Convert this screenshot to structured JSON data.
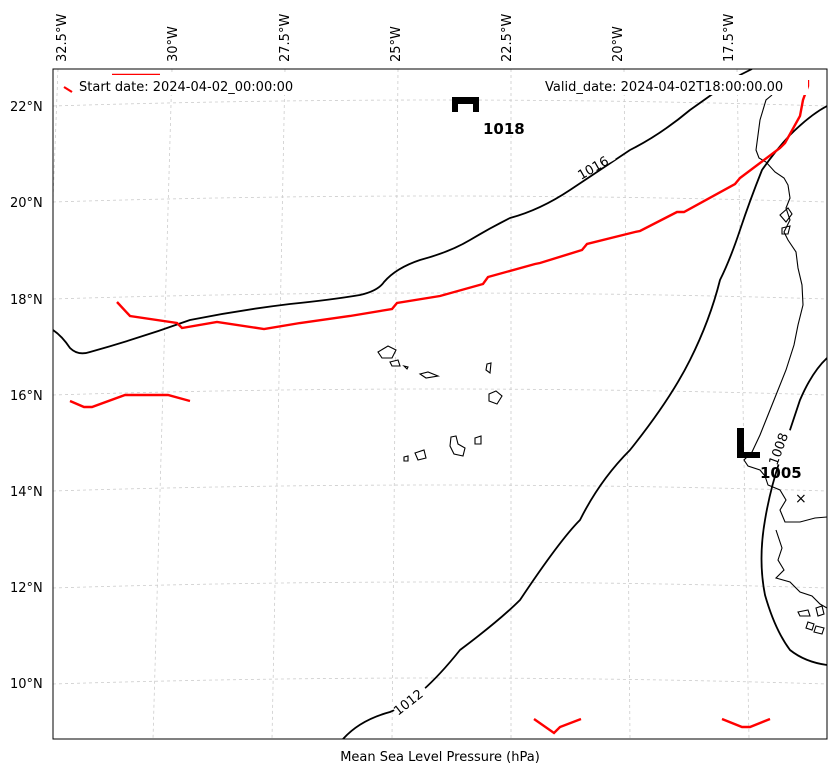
{
  "map": {
    "xlabel": "Mean Sea Level Pressure (hPa)",
    "start_date": "Start date: 2024-04-02_00:00:00",
    "valid_date": "Valid_date: 2024-04-02T18:00:00.00",
    "longitude_labels": [
      "32.5°W",
      "30°W",
      "27.5°W",
      "25°W",
      "22.5°W",
      "20°W",
      "17.5°W"
    ],
    "latitude_labels": [
      "22°N",
      "20°N",
      "18°N",
      "16°N",
      "14°N",
      "12°N",
      "10°N"
    ],
    "pressure_centers": [
      {
        "type": "H",
        "value": "1018"
      },
      {
        "type": "L",
        "value": "1005"
      }
    ],
    "contour_labels": [
      "1016",
      "1012",
      "1008"
    ],
    "colors": {
      "isobar": "#000000",
      "highlight_line": "#ff0000",
      "grid": "#cccccc",
      "coast": "#000000"
    }
  }
}
